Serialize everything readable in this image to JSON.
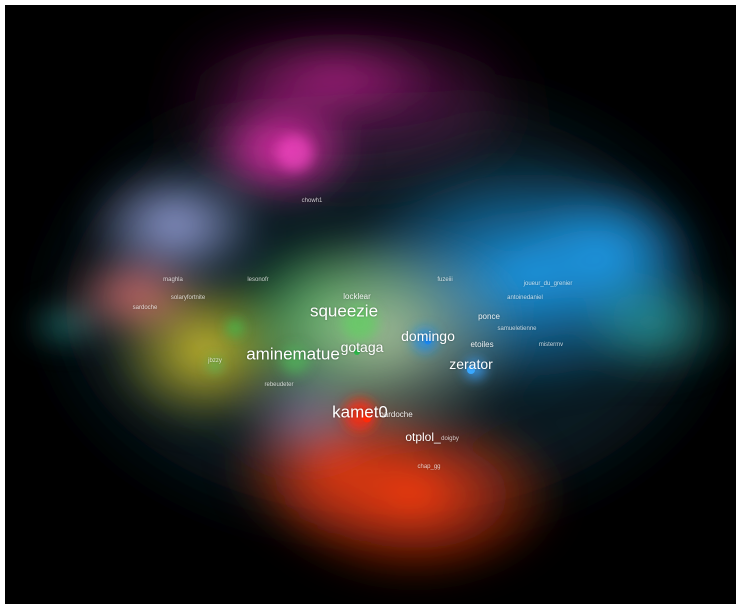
{
  "colors": {
    "background": "#000000",
    "magenta": "#e52bb3",
    "blue": "#1f96e8",
    "green": "#2eb54a",
    "orange": "#ff4a12",
    "yellow": "#d9c42c",
    "lavender": "#9aa3e6",
    "salmon": "#ff7b7b"
  },
  "labels": {
    "squeezie": "squeezie",
    "aminematue": "aminematue",
    "gotaga": "gotaga",
    "domingo": "domingo",
    "zerator": "zerator",
    "kamet0": "kamet0",
    "otplol": "otplol_",
    "locklear": "locklear",
    "ponce": "ponce",
    "etoiles": "etoiles",
    "mistermv": "mistermv",
    "joueur_du_grenier": "joueur_du_grenier",
    "antoinedaniel": "antoinedaniel",
    "samueletienne": "samueletienne",
    "solaryfortnite": "solaryfortnite",
    "jbzzy": "jbzzy",
    "chowh1": "chowh1",
    "rebeudeter": "rebeudeter",
    "bardoche": "bardoche",
    "maghla": "maghla",
    "doigby": "doigby",
    "chap_gg": "chap_gg",
    "sardoche": "sardoche",
    "fuzeiii": "fuzeiii",
    "lesonofr": "lesonofr"
  }
}
